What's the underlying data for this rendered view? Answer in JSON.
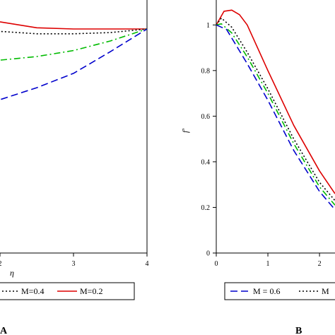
{
  "chart_data": [
    {
      "panel": "A",
      "type": "line",
      "xlabel": "η",
      "ylabel": "",
      "xlim": [
        0,
        4
      ],
      "ylim": [
        0,
        1
      ],
      "x_ticks": [
        2,
        3,
        4
      ],
      "x_tick_labels": [
        "2",
        "3",
        "4"
      ],
      "legend_placement": "bottom",
      "legend": [
        {
          "label": "M=0.4",
          "style": "dotted",
          "color": "#000000"
        },
        {
          "label": "M=0.2",
          "style": "solid",
          "color": "#dd0000"
        }
      ],
      "series": [
        {
          "name": "M=0.2",
          "color": "#dd0000",
          "style": "solid",
          "x": [
            0,
            1.6,
            2.0,
            2.5,
            3.0,
            3.5,
            4.0
          ],
          "y": [
            1.02,
            0.99,
            0.965,
            0.94,
            0.935,
            0.935,
            0.935
          ]
        },
        {
          "name": "M=0.4",
          "color": "#000000",
          "style": "dotted",
          "x": [
            0,
            1.6,
            2.0,
            2.5,
            3.0,
            3.5,
            4.0
          ],
          "y": [
            0.945,
            0.935,
            0.925,
            0.915,
            0.915,
            0.92,
            0.935
          ]
        },
        {
          "color": "#00bb00",
          "style": "dashdot",
          "x": [
            0,
            1.6,
            2.0,
            2.5,
            3.0,
            3.5,
            4.0
          ],
          "y": [
            0.8,
            0.8,
            0.805,
            0.82,
            0.845,
            0.885,
            0.935
          ]
        },
        {
          "color": "#0000cc",
          "style": "dashed",
          "x": [
            0,
            1.6,
            2.0,
            2.5,
            3.0,
            3.5,
            4.0
          ],
          "y": [
            0.62,
            0.62,
            0.64,
            0.69,
            0.75,
            0.84,
            0.935
          ]
        }
      ]
    },
    {
      "panel": "B",
      "type": "line",
      "xlabel": "",
      "ylabel": "f′",
      "xlim": [
        0,
        2.3
      ],
      "ylim": [
        0,
        1.1
      ],
      "x_ticks": [
        0,
        1,
        2
      ],
      "x_tick_labels": [
        "0",
        "1",
        "2"
      ],
      "y_ticks": [
        0,
        0.2,
        0.4,
        0.6,
        0.8,
        1
      ],
      "y_tick_labels": [
        "0",
        "0.2",
        "0.4",
        "0.6",
        "0.8",
        "1"
      ],
      "legend_placement": "bottom",
      "legend": [
        {
          "label": "M = 0.6",
          "style": "dashed",
          "color": "#0000cc"
        },
        {
          "label": "M",
          "style": "dotted",
          "color": "#000000"
        }
      ],
      "series": [
        {
          "color": "#dd0000",
          "style": "solid",
          "x": [
            0,
            0.15,
            0.3,
            0.45,
            0.6,
            1.0,
            1.5,
            2.0,
            2.3
          ],
          "y": [
            1.0,
            1.06,
            1.065,
            1.045,
            1.0,
            0.8,
            0.56,
            0.36,
            0.26
          ]
        },
        {
          "name": "M",
          "color": "#000000",
          "style": "dotted",
          "x": [
            0,
            0.1,
            0.3,
            0.6,
            1.0,
            1.5,
            2.0,
            2.3
          ],
          "y": [
            1.0,
            1.03,
            0.99,
            0.88,
            0.72,
            0.5,
            0.31,
            0.23
          ]
        },
        {
          "color": "#00bb00",
          "style": "dashdot",
          "x": [
            0,
            0.1,
            0.3,
            0.6,
            1.0,
            1.5,
            2.0,
            2.3
          ],
          "y": [
            1.0,
            1.005,
            0.965,
            0.86,
            0.7,
            0.48,
            0.29,
            0.21
          ]
        },
        {
          "name": "M = 0.6",
          "color": "#0000cc",
          "style": "dashed",
          "x": [
            0,
            0.2,
            0.6,
            1.0,
            1.5,
            2.0,
            2.3
          ],
          "y": [
            1.0,
            0.98,
            0.83,
            0.67,
            0.45,
            0.27,
            0.19
          ]
        }
      ]
    }
  ]
}
